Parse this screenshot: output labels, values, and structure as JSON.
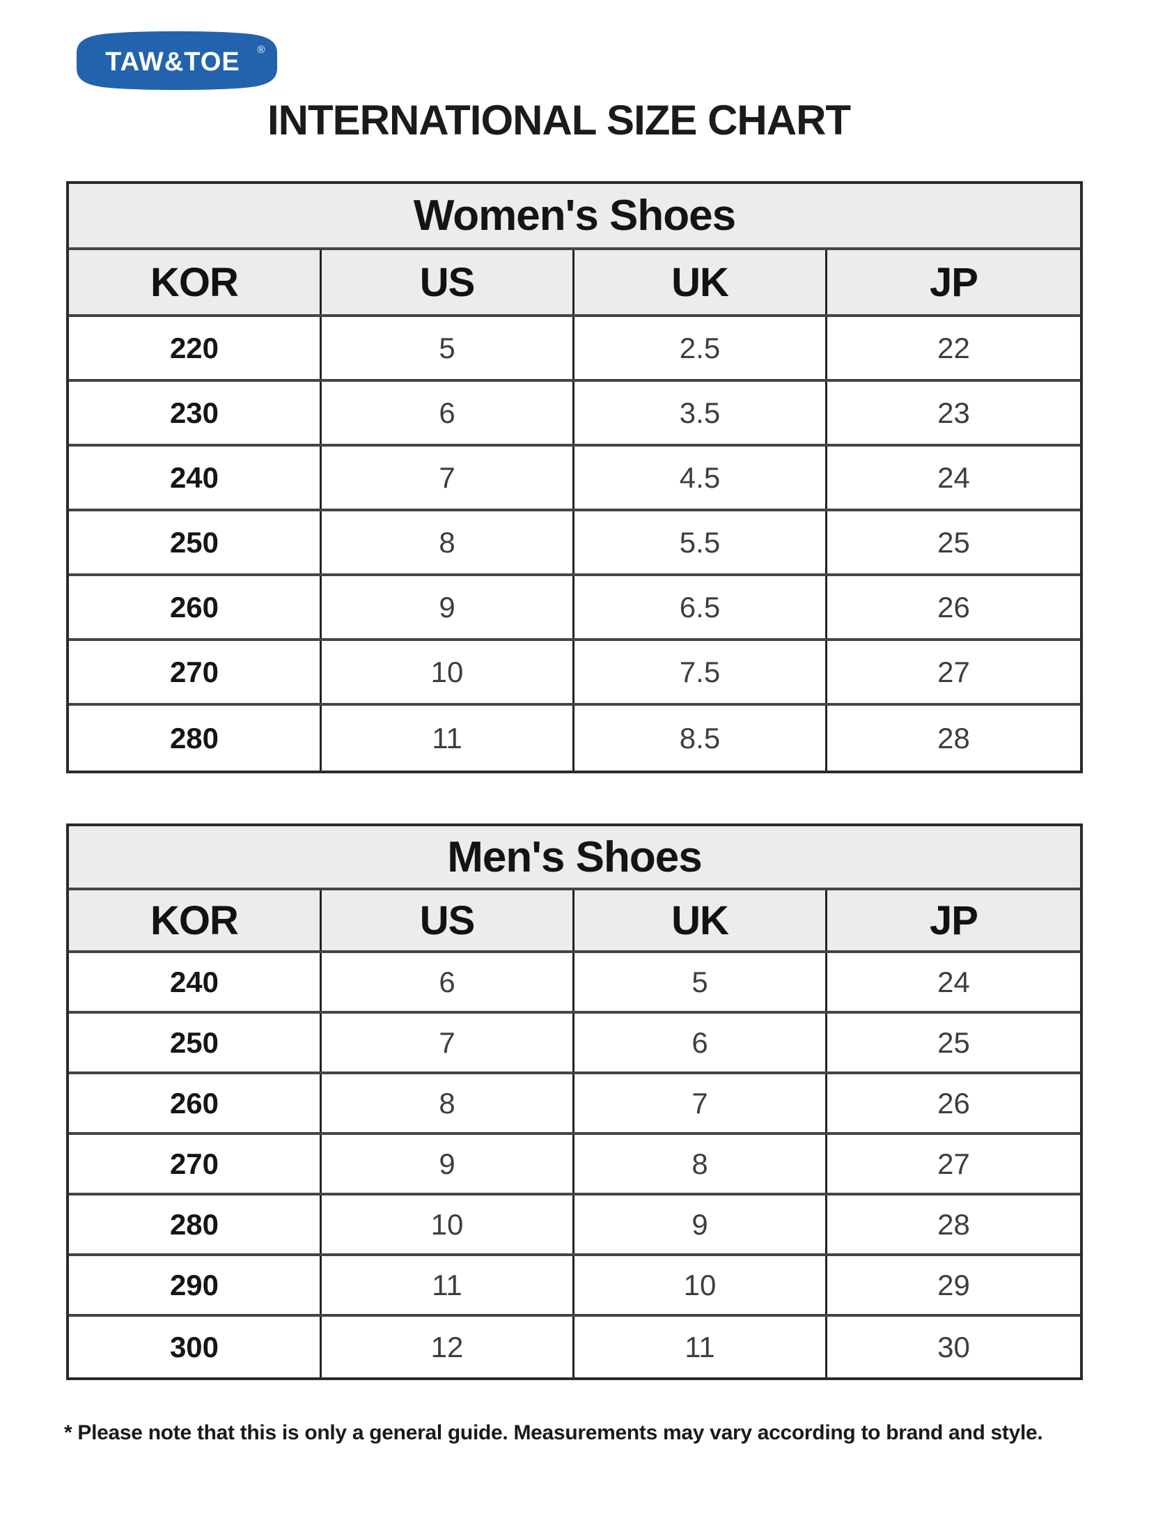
{
  "logo": {
    "text": "TAW&TOE",
    "registered_mark": "®",
    "badge_color": "#2363ad",
    "text_color": "#ffffff"
  },
  "page_title": "INTERNATIONAL SIZE CHART",
  "tables": [
    {
      "title": "Women's Shoes",
      "columns": [
        "KOR",
        "US",
        "UK",
        "JP"
      ],
      "rows": [
        [
          "220",
          "5",
          "2.5",
          "22"
        ],
        [
          "230",
          "6",
          "3.5",
          "23"
        ],
        [
          "240",
          "7",
          "4.5",
          "24"
        ],
        [
          "250",
          "8",
          "5.5",
          "25"
        ],
        [
          "260",
          "9",
          "6.5",
          "26"
        ],
        [
          "270",
          "10",
          "7.5",
          "27"
        ],
        [
          "280",
          "11",
          "8.5",
          "28"
        ]
      ]
    },
    {
      "title": "Men's Shoes",
      "columns": [
        "KOR",
        "US",
        "UK",
        "JP"
      ],
      "rows": [
        [
          "240",
          "6",
          "5",
          "24"
        ],
        [
          "250",
          "7",
          "6",
          "25"
        ],
        [
          "260",
          "8",
          "7",
          "26"
        ],
        [
          "270",
          "9",
          "8",
          "27"
        ],
        [
          "280",
          "10",
          "9",
          "28"
        ],
        [
          "290",
          "11",
          "10",
          "29"
        ],
        [
          "300",
          "12",
          "11",
          "30"
        ]
      ]
    }
  ],
  "footnote": "* Please note that this is only a general guide. Measurements may vary according to brand and style.",
  "colors": {
    "header_bg": "#ececec",
    "outer_border": "#2b2b2b",
    "row_border": "#454545",
    "column_border": "#222222",
    "kor_text": "#161616",
    "data_text": "#3e3e3e",
    "title_text": "#1b1b1b"
  }
}
